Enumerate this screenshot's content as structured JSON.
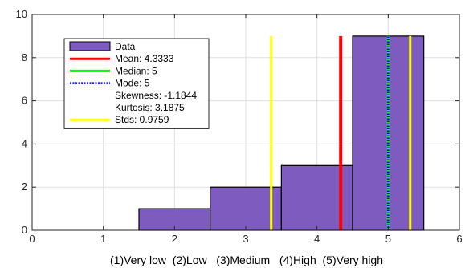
{
  "chart_data": {
    "type": "bar",
    "bin_edges": [
      1.5,
      2.5,
      3.5,
      4.5,
      5.5
    ],
    "values": [
      1,
      2,
      3,
      9
    ],
    "xlim": [
      0,
      6
    ],
    "ylim": [
      0,
      10
    ],
    "x_ticks": [
      "0",
      "1",
      "2",
      "3",
      "4",
      "5",
      "6"
    ],
    "y_ticks": [
      "0",
      "2",
      "4",
      "6",
      "8",
      "10"
    ],
    "xlabel": "(1)Very low  (2)Low   (3)Medium   (4)High  (5)Very high",
    "grid": true,
    "legend_position": "top-left",
    "colors": {
      "bars": "#7e5bbf",
      "mean": "#ff0000",
      "median": "#00ff00",
      "mode": "#0000ff",
      "stds": "#ffff00"
    },
    "vertical_lines": [
      {
        "key": "mean",
        "x": 4.3333,
        "y_top": 9
      },
      {
        "key": "median",
        "x": 5,
        "y_top": 9
      },
      {
        "key": "mode",
        "x": 5,
        "y_top": 9
      },
      {
        "key": "std_low",
        "x": 3.3574,
        "y_top": 9
      },
      {
        "key": "std_high",
        "x": 5.3092,
        "y_top": 9
      }
    ],
    "legend": [
      {
        "label": "Data",
        "style": "patch"
      },
      {
        "label": "Mean: 4.3333",
        "style": "line",
        "color_key": "mean"
      },
      {
        "label": "Median: 5",
        "style": "line",
        "color_key": "median"
      },
      {
        "label": "Mode: 5",
        "style": "dotted",
        "color_key": "mode"
      },
      {
        "label": "Skewness: -1.1844",
        "style": "none"
      },
      {
        "label": "Kurtosis: 3.1875",
        "style": "none"
      },
      {
        "label": "Stds: 0.9759",
        "style": "line",
        "color_key": "stds"
      }
    ]
  }
}
